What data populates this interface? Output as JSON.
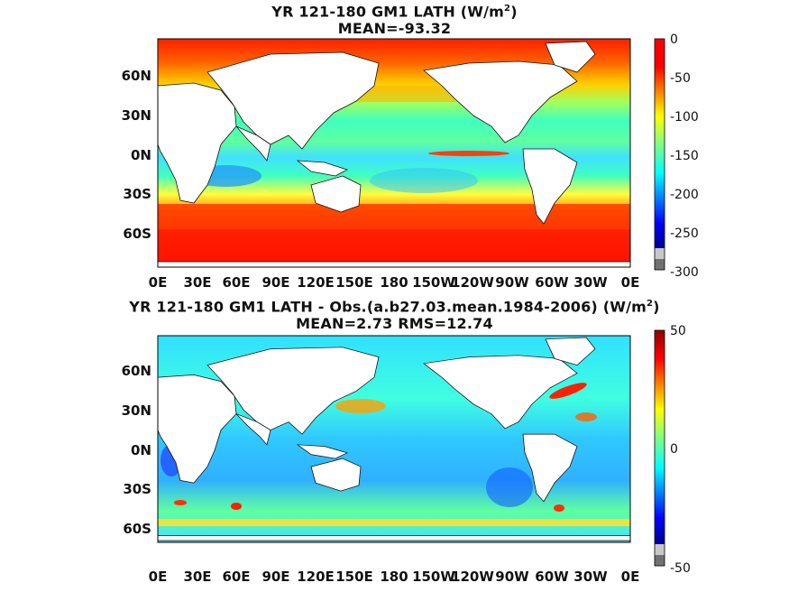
{
  "panels": [
    {
      "title_line1_pre": "YR 121-180 GM1  LATH (W/m",
      "title_line1_sup": "2",
      "title_line1_post": ")",
      "title_line2": "MEAN=-93.32",
      "lat_ticks": [
        "60N",
        "30N",
        "0N",
        "30S",
        "60S"
      ],
      "lon_ticks": [
        "0E",
        "30E",
        "60E",
        "90E",
        "120E",
        "150E",
        "180",
        "150W",
        "120W",
        "90W",
        "60W",
        "30W",
        "0E"
      ],
      "colorbar_ticks": [
        "0",
        "-50",
        "-100",
        "-150",
        "-200",
        "-250",
        "-300"
      ],
      "colorbar_range": [
        -300,
        0
      ]
    },
    {
      "title_line1_pre": "YR 121-180 GM1 LATH - Obs.(a.b27.03.mean.1984-2006) (W/m",
      "title_line1_sup": "2",
      "title_line1_post": ")",
      "title_line2": "MEAN=2.73 RMS=12.74",
      "lat_ticks": [
        "60N",
        "30N",
        "0N",
        "30S",
        "60S"
      ],
      "lon_ticks": [
        "0E",
        "30E",
        "60E",
        "90E",
        "120E",
        "150E",
        "180",
        "150W",
        "120W",
        "90W",
        "60W",
        "30W",
        "0E"
      ],
      "colorbar_ticks": [
        "50",
        "0",
        "-50"
      ],
      "colorbar_range": [
        -50,
        50
      ]
    }
  ],
  "colors": {
    "jet": [
      "#00008f",
      "#0000ff",
      "#0080ff",
      "#00ffff",
      "#80ff80",
      "#ffff00",
      "#ff8000",
      "#ff0000",
      "#8f0000"
    ],
    "land": "#ffffff",
    "missing": "#808080"
  }
}
